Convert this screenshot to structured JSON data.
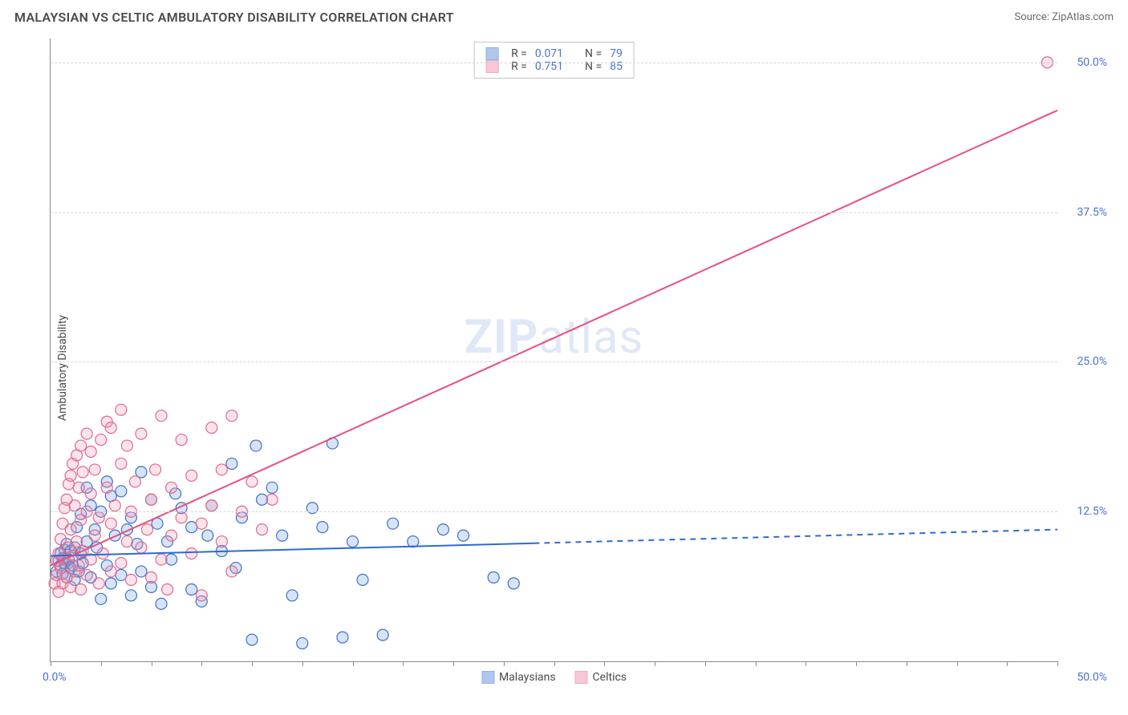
{
  "header": {
    "title": "MALAYSIAN VS CELTIC AMBULATORY DISABILITY CORRELATION CHART",
    "source_label": "Source: ZipAtlas.com"
  },
  "chart": {
    "type": "scatter",
    "ylabel": "Ambulatory Disability",
    "watermark": {
      "bold": "ZIP",
      "rest": "atlas"
    },
    "xlim": [
      0,
      50
    ],
    "ylim": [
      0,
      52
    ],
    "x_axis_labels": {
      "min": "0.0%",
      "max": "50.0%"
    },
    "y_grid": [
      {
        "value": 12.5,
        "label": "12.5%"
      },
      {
        "value": 25.0,
        "label": "25.0%"
      },
      {
        "value": 37.5,
        "label": "37.5%"
      },
      {
        "value": 50.0,
        "label": "50.0%"
      }
    ],
    "x_ticks": [
      0,
      2.5,
      5,
      7.5,
      10,
      12.5,
      15,
      17.5,
      20,
      22.5,
      25,
      27.5,
      30,
      32.5,
      35,
      37.5,
      40,
      42.5,
      45,
      47.5,
      50
    ],
    "marker_radius": 7,
    "marker_stroke_width": 1.2,
    "marker_fill_opacity": 0.28,
    "line_width": 2,
    "series": [
      {
        "name": "Malaysians",
        "fill_color": "#6f9adf",
        "stroke_color": "#3d72c9",
        "line_color": "#2d6bd1",
        "R": "0.071",
        "N": "79",
        "trend": {
          "solid_to_x": 24,
          "y_at_0": 8.8,
          "y_at_50": 11.0
        },
        "points": [
          [
            0.3,
            7.5
          ],
          [
            0.4,
            8.4
          ],
          [
            0.5,
            8.0
          ],
          [
            0.5,
            9.0
          ],
          [
            0.6,
            7.3
          ],
          [
            0.6,
            8.6
          ],
          [
            0.7,
            8.2
          ],
          [
            0.7,
            9.3
          ],
          [
            0.8,
            7.0
          ],
          [
            0.8,
            9.8
          ],
          [
            0.9,
            8.5
          ],
          [
            1.0,
            7.8
          ],
          [
            1.0,
            9.2
          ],
          [
            1.1,
            8.0
          ],
          [
            1.2,
            6.8
          ],
          [
            1.2,
            9.5
          ],
          [
            1.3,
            11.2
          ],
          [
            1.4,
            7.5
          ],
          [
            1.5,
            12.3
          ],
          [
            1.5,
            9.0
          ],
          [
            1.6,
            8.2
          ],
          [
            1.8,
            14.5
          ],
          [
            1.8,
            10.0
          ],
          [
            2.0,
            13.0
          ],
          [
            2.0,
            7.0
          ],
          [
            2.2,
            11.0
          ],
          [
            2.3,
            9.5
          ],
          [
            2.5,
            5.2
          ],
          [
            2.5,
            12.5
          ],
          [
            2.8,
            15.0
          ],
          [
            2.8,
            8.0
          ],
          [
            3.0,
            13.8
          ],
          [
            3.0,
            6.5
          ],
          [
            3.2,
            10.5
          ],
          [
            3.5,
            7.2
          ],
          [
            3.5,
            14.2
          ],
          [
            3.8,
            11.0
          ],
          [
            4.0,
            5.5
          ],
          [
            4.0,
            12.0
          ],
          [
            4.3,
            9.8
          ],
          [
            4.5,
            15.8
          ],
          [
            4.5,
            7.5
          ],
          [
            5.0,
            6.2
          ],
          [
            5.0,
            13.5
          ],
          [
            5.3,
            11.5
          ],
          [
            5.5,
            4.8
          ],
          [
            5.8,
            10.0
          ],
          [
            6.0,
            8.5
          ],
          [
            6.2,
            14.0
          ],
          [
            6.5,
            12.8
          ],
          [
            7.0,
            6.0
          ],
          [
            7.0,
            11.2
          ],
          [
            7.5,
            5.0
          ],
          [
            7.8,
            10.5
          ],
          [
            8.0,
            13.0
          ],
          [
            8.5,
            9.2
          ],
          [
            9.0,
            16.5
          ],
          [
            9.2,
            7.8
          ],
          [
            9.5,
            12.0
          ],
          [
            10.0,
            1.8
          ],
          [
            10.2,
            18.0
          ],
          [
            10.5,
            13.5
          ],
          [
            11.0,
            14.5
          ],
          [
            11.5,
            10.5
          ],
          [
            12.0,
            5.5
          ],
          [
            12.5,
            1.5
          ],
          [
            13.0,
            12.8
          ],
          [
            13.5,
            11.2
          ],
          [
            14.0,
            18.2
          ],
          [
            14.5,
            2.0
          ],
          [
            15.0,
            10.0
          ],
          [
            15.5,
            6.8
          ],
          [
            16.5,
            2.2
          ],
          [
            17.0,
            11.5
          ],
          [
            18.0,
            10.0
          ],
          [
            19.5,
            11.0
          ],
          [
            20.5,
            10.5
          ],
          [
            22.0,
            7.0
          ],
          [
            23.0,
            6.5
          ]
        ]
      },
      {
        "name": "Celtics",
        "fill_color": "#f29bb5",
        "stroke_color": "#e06a8e",
        "line_color": "#e84f7e",
        "R": "0.751",
        "N": "85",
        "trend": {
          "solid_to_x": 50,
          "y_at_0": 8.0,
          "y_at_50": 46.0
        },
        "points": [
          [
            0.2,
            6.5
          ],
          [
            0.3,
            7.2
          ],
          [
            0.3,
            8.4
          ],
          [
            0.4,
            5.8
          ],
          [
            0.4,
            9.0
          ],
          [
            0.5,
            7.8
          ],
          [
            0.5,
            10.2
          ],
          [
            0.6,
            6.5
          ],
          [
            0.6,
            11.5
          ],
          [
            0.7,
            8.5
          ],
          [
            0.7,
            12.8
          ],
          [
            0.8,
            7.0
          ],
          [
            0.8,
            13.5
          ],
          [
            0.9,
            9.5
          ],
          [
            0.9,
            14.8
          ],
          [
            1.0,
            6.2
          ],
          [
            1.0,
            11.0
          ],
          [
            1.0,
            15.5
          ],
          [
            1.1,
            8.8
          ],
          [
            1.1,
            16.5
          ],
          [
            1.2,
            7.5
          ],
          [
            1.2,
            13.0
          ],
          [
            1.3,
            10.0
          ],
          [
            1.3,
            17.2
          ],
          [
            1.4,
            8.0
          ],
          [
            1.4,
            14.5
          ],
          [
            1.5,
            6.0
          ],
          [
            1.5,
            11.8
          ],
          [
            1.5,
            18.0
          ],
          [
            1.6,
            9.2
          ],
          [
            1.6,
            15.8
          ],
          [
            1.8,
            7.2
          ],
          [
            1.8,
            12.5
          ],
          [
            1.8,
            19.0
          ],
          [
            2.0,
            8.5
          ],
          [
            2.0,
            14.0
          ],
          [
            2.0,
            17.5
          ],
          [
            2.2,
            10.5
          ],
          [
            2.2,
            16.0
          ],
          [
            2.4,
            6.5
          ],
          [
            2.4,
            12.0
          ],
          [
            2.5,
            18.5
          ],
          [
            2.6,
            9.0
          ],
          [
            2.8,
            14.5
          ],
          [
            2.8,
            20.0
          ],
          [
            3.0,
            7.5
          ],
          [
            3.0,
            11.5
          ],
          [
            3.0,
            19.5
          ],
          [
            3.2,
            13.0
          ],
          [
            3.5,
            8.2
          ],
          [
            3.5,
            16.5
          ],
          [
            3.5,
            21.0
          ],
          [
            3.8,
            10.0
          ],
          [
            3.8,
            18.0
          ],
          [
            4.0,
            6.8
          ],
          [
            4.0,
            12.5
          ],
          [
            4.2,
            15.0
          ],
          [
            4.5,
            9.5
          ],
          [
            4.5,
            19.0
          ],
          [
            4.8,
            11.0
          ],
          [
            5.0,
            7.0
          ],
          [
            5.0,
            13.5
          ],
          [
            5.2,
            16.0
          ],
          [
            5.5,
            8.5
          ],
          [
            5.5,
            20.5
          ],
          [
            5.8,
            6.0
          ],
          [
            6.0,
            10.5
          ],
          [
            6.0,
            14.5
          ],
          [
            6.5,
            12.0
          ],
          [
            6.5,
            18.5
          ],
          [
            7.0,
            9.0
          ],
          [
            7.0,
            15.5
          ],
          [
            7.5,
            5.5
          ],
          [
            7.5,
            11.5
          ],
          [
            8.0,
            13.0
          ],
          [
            8.0,
            19.5
          ],
          [
            8.5,
            10.0
          ],
          [
            8.5,
            16.0
          ],
          [
            9.0,
            7.5
          ],
          [
            9.0,
            20.5
          ],
          [
            9.5,
            12.5
          ],
          [
            10.0,
            15.0
          ],
          [
            10.5,
            11.0
          ],
          [
            11.0,
            13.5
          ],
          [
            49.5,
            50.0
          ]
        ]
      }
    ],
    "stats_box": {
      "R_label": "R =",
      "N_label": "N ="
    },
    "bottom_legend": [
      {
        "series_index": 0
      },
      {
        "series_index": 1
      }
    ]
  }
}
